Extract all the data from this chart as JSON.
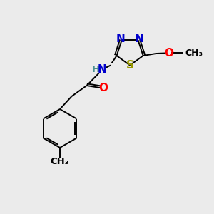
{
  "bg_color": "#ebebeb",
  "atom_colors": {
    "N": "#0000cc",
    "S": "#999900",
    "O": "#ff0000",
    "C": "#000000",
    "H": "#4a9090"
  },
  "bond_color": "#000000",
  "font_size_atom": 11,
  "font_size_small": 9.5
}
